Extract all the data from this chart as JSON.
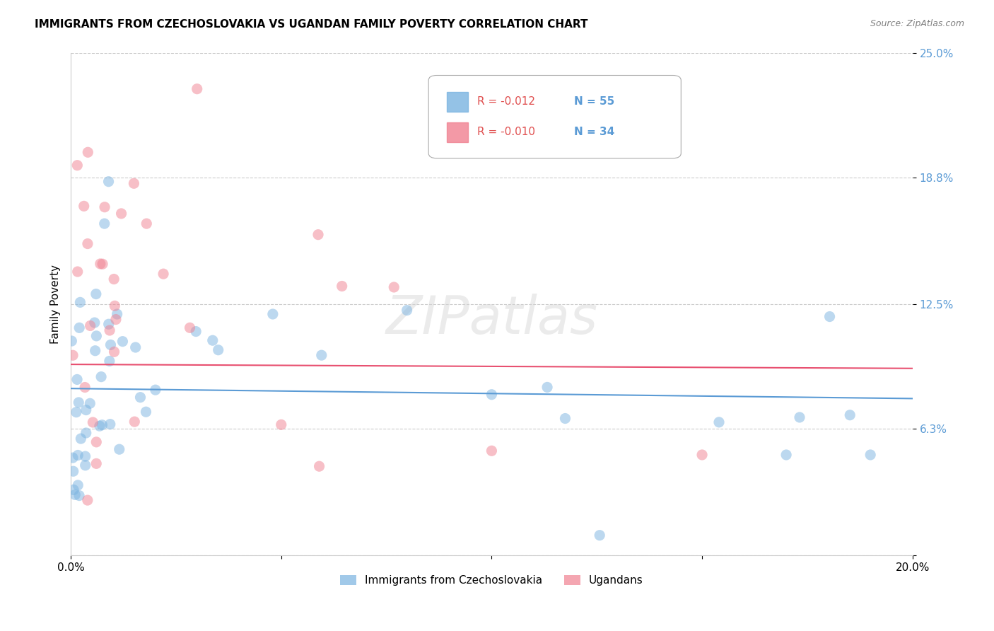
{
  "title": "IMMIGRANTS FROM CZECHOSLOVAKIA VS UGANDAN FAMILY POVERTY CORRELATION CHART",
  "source": "Source: ZipAtlas.com",
  "ylabel": "Family Poverty",
  "xlim": [
    0,
    0.2
  ],
  "ylim": [
    0,
    0.25
  ],
  "legend_entries": [
    {
      "label": "Immigrants from Czechoslovakia",
      "color": "#aec6e8",
      "r": "-0.012",
      "n": "55"
    },
    {
      "label": "Ugandans",
      "color": "#f4a9b8",
      "r": "-0.010",
      "n": "34"
    }
  ],
  "blue_line_start_y": 0.083,
  "blue_line_end_y": 0.078,
  "pink_line_start_y": 0.095,
  "pink_line_end_y": 0.093,
  "watermark": "ZIPatlas",
  "background_color": "#ffffff",
  "scatter_size": 120,
  "scatter_alpha": 0.5,
  "blue_color": "#7ab3e0",
  "pink_color": "#f08090",
  "blue_line_color": "#5b9bd5",
  "pink_line_color": "#e85070",
  "r1_color": "#e05050",
  "n1_color": "#5b9bd5",
  "ytick_color": "#5b9bd5"
}
